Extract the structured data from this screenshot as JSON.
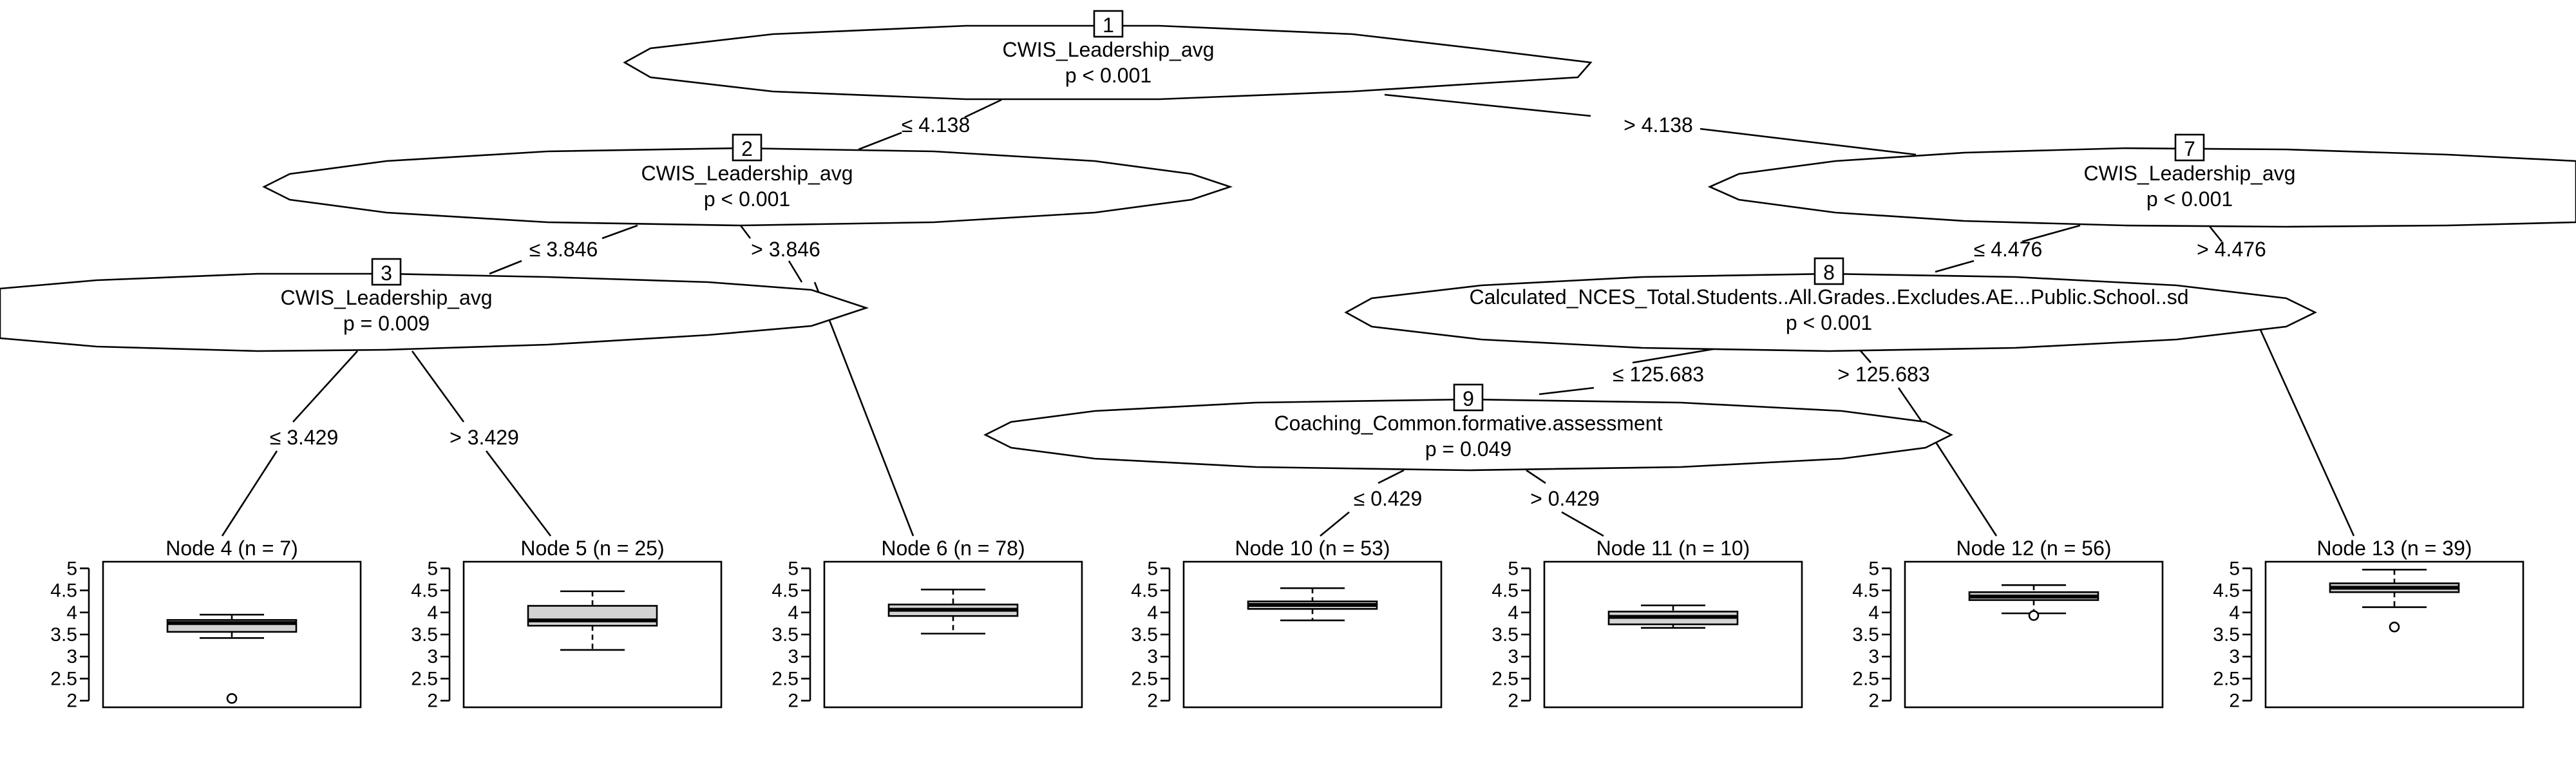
{
  "inner_nodes": [
    {
      "id": "1",
      "variable": "CWIS_Leadership_avg",
      "p": "p < 0.001"
    },
    {
      "id": "2",
      "variable": "CWIS_Leadership_avg",
      "p": "p < 0.001"
    },
    {
      "id": "3",
      "variable": "CWIS_Leadership_avg",
      "p": "p = 0.009"
    },
    {
      "id": "7",
      "variable": "CWIS_Leadership_avg",
      "p": "p < 0.001"
    },
    {
      "id": "8",
      "variable": "Calculated_NCES_Total.Students..All.Grades..Excludes.AE...Public.School..sd",
      "p": "p < 0.001"
    },
    {
      "id": "9",
      "variable": "Coaching_Common.formative.assessment",
      "p": "p = 0.049"
    }
  ],
  "edges": [
    {
      "label": "≤ 4.138"
    },
    {
      "label": "> 4.138"
    },
    {
      "label": "≤ 3.846"
    },
    {
      "label": "> 3.846"
    },
    {
      "label": "≤ 3.429"
    },
    {
      "label": "> 3.429"
    },
    {
      "label": "≤ 4.476"
    },
    {
      "label": "> 4.476"
    },
    {
      "label": "≤ 125.683"
    },
    {
      "label": "> 125.683"
    },
    {
      "label": "≤ 0.429"
    },
    {
      "label": "> 0.429"
    }
  ],
  "terminal_nodes": [
    {
      "title": "Node 4 (n = 7)",
      "q1": 3.56,
      "median": 3.76,
      "q3": 3.83,
      "whisker_low": 3.42,
      "whisker_high": 3.95,
      "outliers": [
        2.05
      ]
    },
    {
      "title": "Node 5 (n = 25)",
      "q1": 3.7,
      "median": 3.82,
      "q3": 4.15,
      "whisker_low": 3.15,
      "whisker_high": 4.48,
      "outliers": []
    },
    {
      "title": "Node 6 (n = 78)",
      "q1": 3.92,
      "median": 4.06,
      "q3": 4.18,
      "whisker_low": 3.52,
      "whisker_high": 4.52,
      "outliers": []
    },
    {
      "title": "Node 10 (n = 53)",
      "q1": 4.08,
      "median": 4.17,
      "q3": 4.25,
      "whisker_low": 3.82,
      "whisker_high": 4.55,
      "outliers": []
    },
    {
      "title": "Node 11 (n = 10)",
      "q1": 3.73,
      "median": 3.9,
      "q3": 4.02,
      "whisker_low": 3.65,
      "whisker_high": 4.16,
      "outliers": []
    },
    {
      "title": "Node 12 (n = 56)",
      "q1": 4.28,
      "median": 4.36,
      "q3": 4.46,
      "whisker_low": 3.98,
      "whisker_high": 4.62,
      "outliers": [
        3.93
      ]
    },
    {
      "title": "Node 13 (n = 39)",
      "q1": 4.46,
      "median": 4.56,
      "q3": 4.66,
      "whisker_low": 4.12,
      "whisker_high": 4.97,
      "outliers": [
        3.67
      ]
    }
  ],
  "y_axis": {
    "ticks": [
      5,
      4.5,
      4,
      3.5,
      3,
      2.5,
      2
    ],
    "tick_labels": [
      "5",
      "4.5",
      "4",
      "3.5",
      "3",
      "2.5",
      "2"
    ],
    "ylim": [
      1.85,
      5.15
    ]
  }
}
